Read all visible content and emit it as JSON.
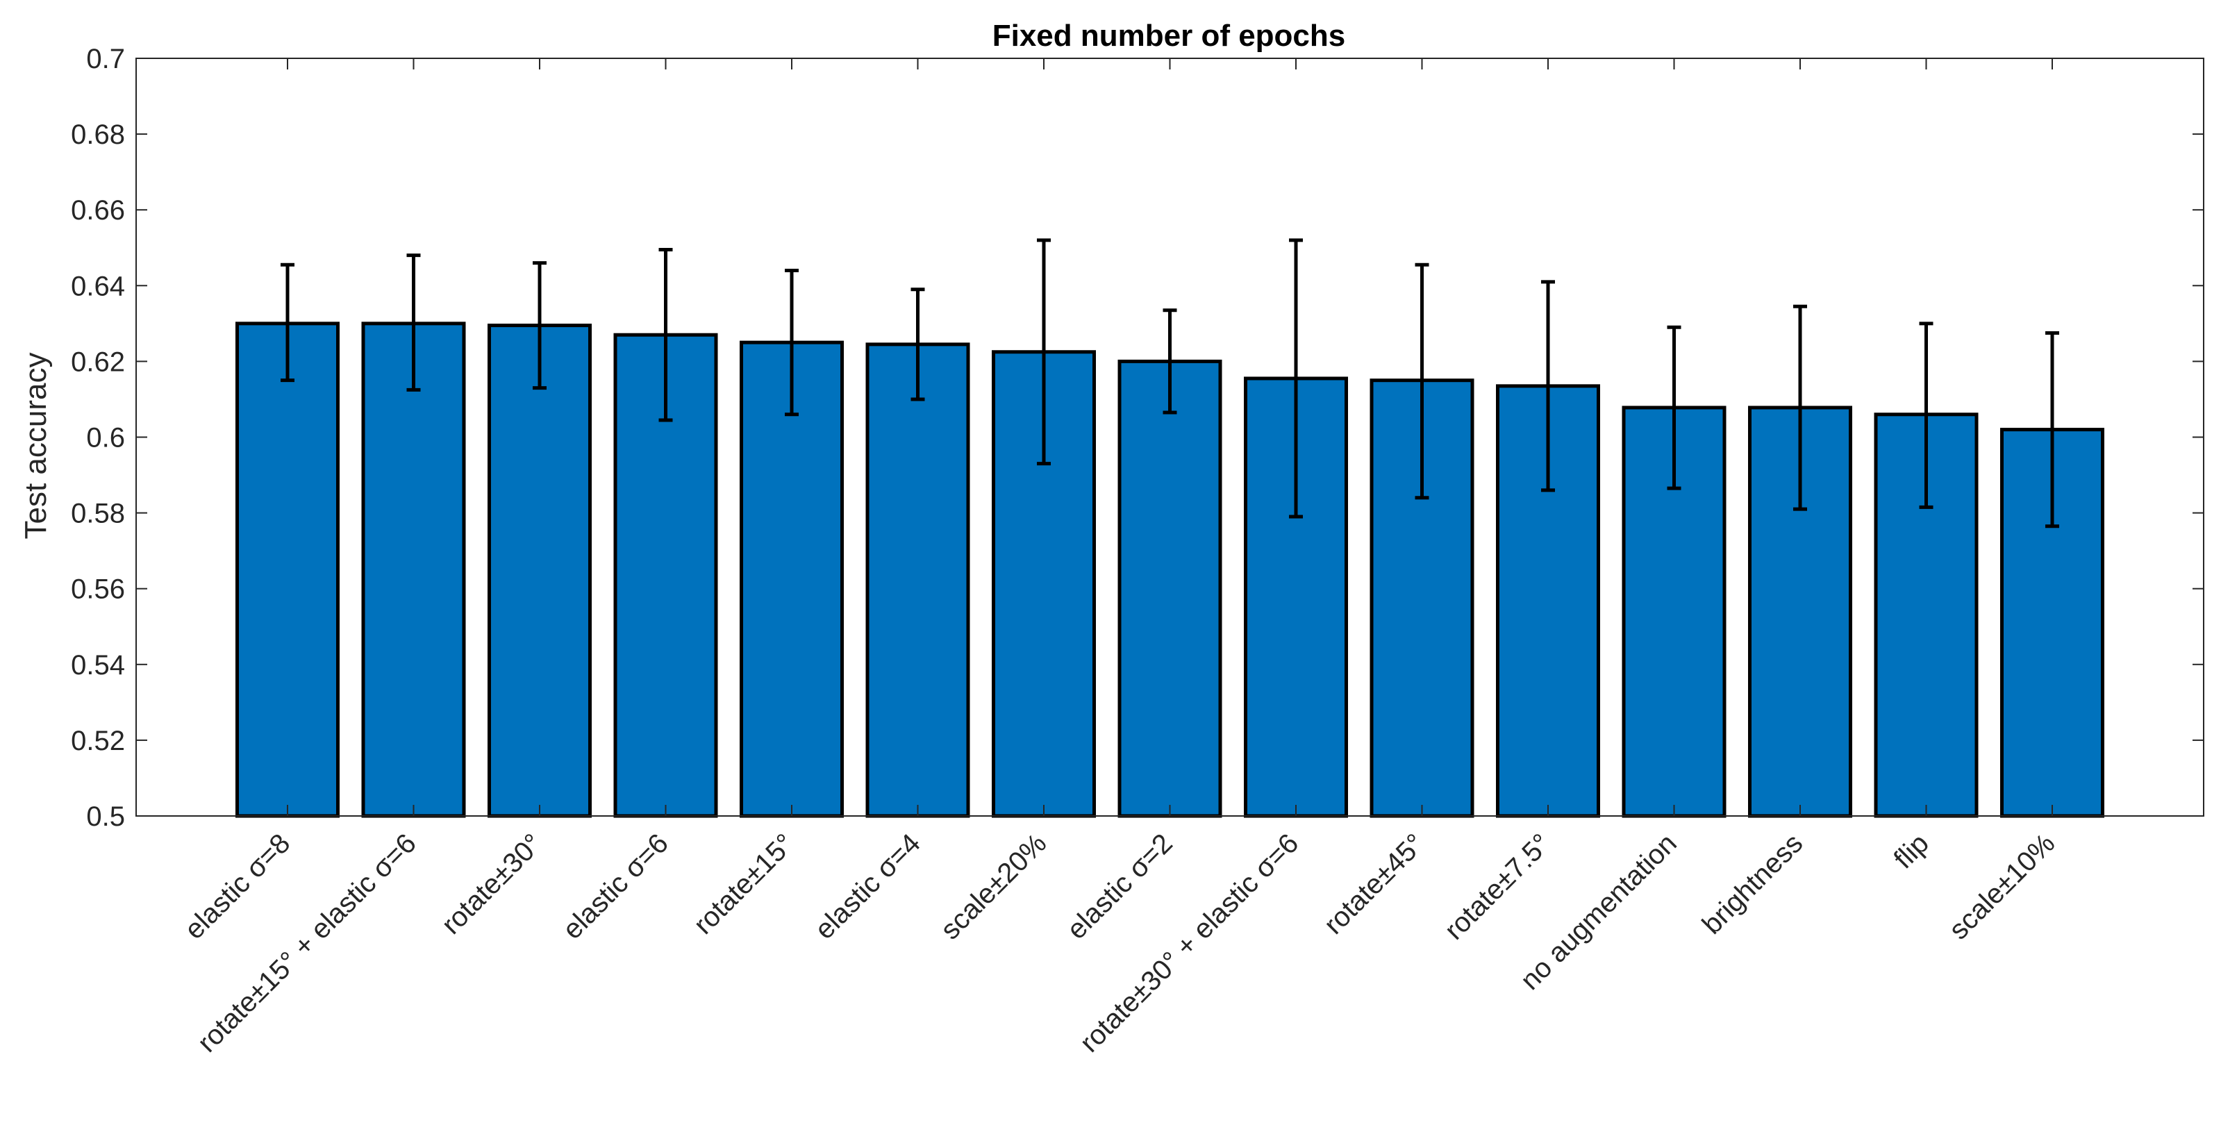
{
  "chart_data": {
    "type": "bar",
    "title": "Fixed number of epochs",
    "xlabel": "",
    "ylabel": "Test accuracy",
    "ylim": [
      0.5,
      0.7
    ],
    "yticks": [
      "0.5",
      "0.52",
      "0.54",
      "0.56",
      "0.58",
      "0.6",
      "0.62",
      "0.64",
      "0.66",
      "0.68",
      "0.7"
    ],
    "grid": false,
    "bar_color": "#0072BD",
    "edge_color": "#000000",
    "categories": [
      "elastic σ=8",
      "rotate±15° + elastic σ=6",
      "rotate±30°",
      "elastic σ=6",
      "rotate±15°",
      "elastic σ=4",
      "scale±20%",
      "elastic σ=2",
      "rotate±30° + elastic σ=6",
      "rotate±45°",
      "rotate±7.5°",
      "no augmentation",
      "brightness",
      "flip",
      "scale±10%"
    ],
    "values": [
      0.63,
      0.63,
      0.6295,
      0.627,
      0.625,
      0.6245,
      0.6225,
      0.62,
      0.6155,
      0.615,
      0.6135,
      0.6078,
      0.6078,
      0.606,
      0.602
    ],
    "error_lower": [
      0.615,
      0.6125,
      0.613,
      0.6045,
      0.606,
      0.61,
      0.593,
      0.6065,
      0.579,
      0.584,
      0.586,
      0.5865,
      0.581,
      0.5815,
      0.5765
    ],
    "error_upper": [
      0.6455,
      0.648,
      0.646,
      0.6495,
      0.644,
      0.639,
      0.652,
      0.6335,
      0.652,
      0.6455,
      0.641,
      0.629,
      0.6345,
      0.63,
      0.6275
    ]
  }
}
